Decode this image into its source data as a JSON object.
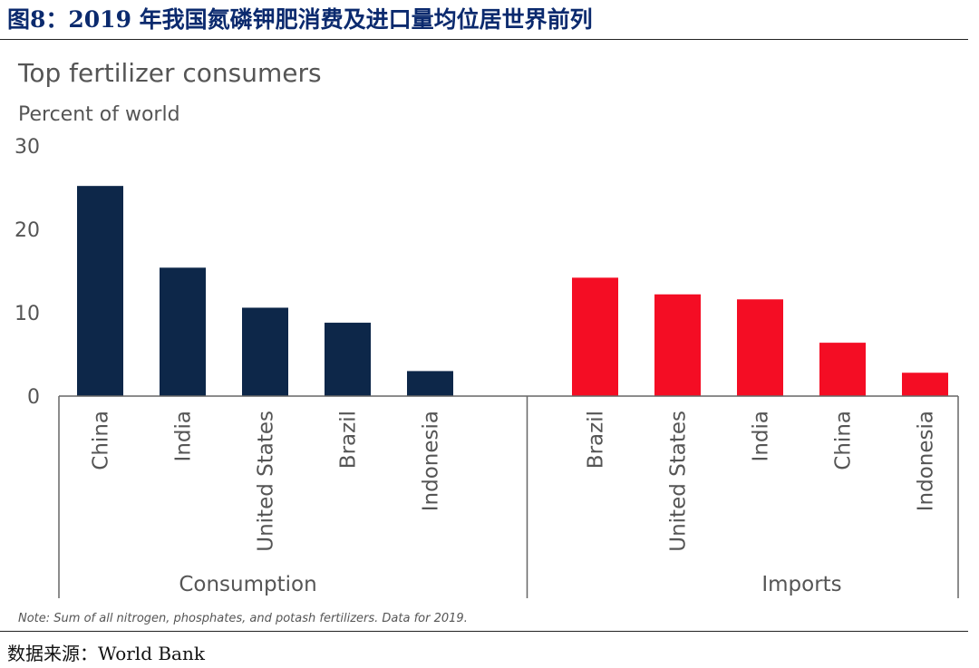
{
  "figure_title": "图8：2019 年我国氮磷钾肥消费及进口量均位居世界前列",
  "source": "数据来源：World Bank",
  "colors": {
    "consumption": "#0d2749",
    "imports": "#f40d24",
    "axis": "#666666",
    "text": "#555555"
  },
  "chart_data": {
    "type": "bar",
    "title": "Top fertilizer consumers",
    "ylabel": "Percent of world",
    "ylim": [
      0,
      30
    ],
    "yticks": [
      0,
      10,
      20,
      30
    ],
    "grid": false,
    "groups": [
      {
        "name": "Consumption",
        "categories": [
          "China",
          "India",
          "United States",
          "Brazil",
          "Indonesia"
        ],
        "values": [
          25.2,
          15.4,
          10.6,
          8.8,
          3.0
        ]
      },
      {
        "name": "Imports",
        "categories": [
          "Brazil",
          "United States",
          "India",
          "China",
          "Indonesia"
        ],
        "values": [
          14.2,
          12.2,
          11.6,
          6.4,
          2.8
        ]
      }
    ],
    "note": "Note: Sum of all nitrogen, phosphates, and potash fertilizers. Data for 2019."
  }
}
